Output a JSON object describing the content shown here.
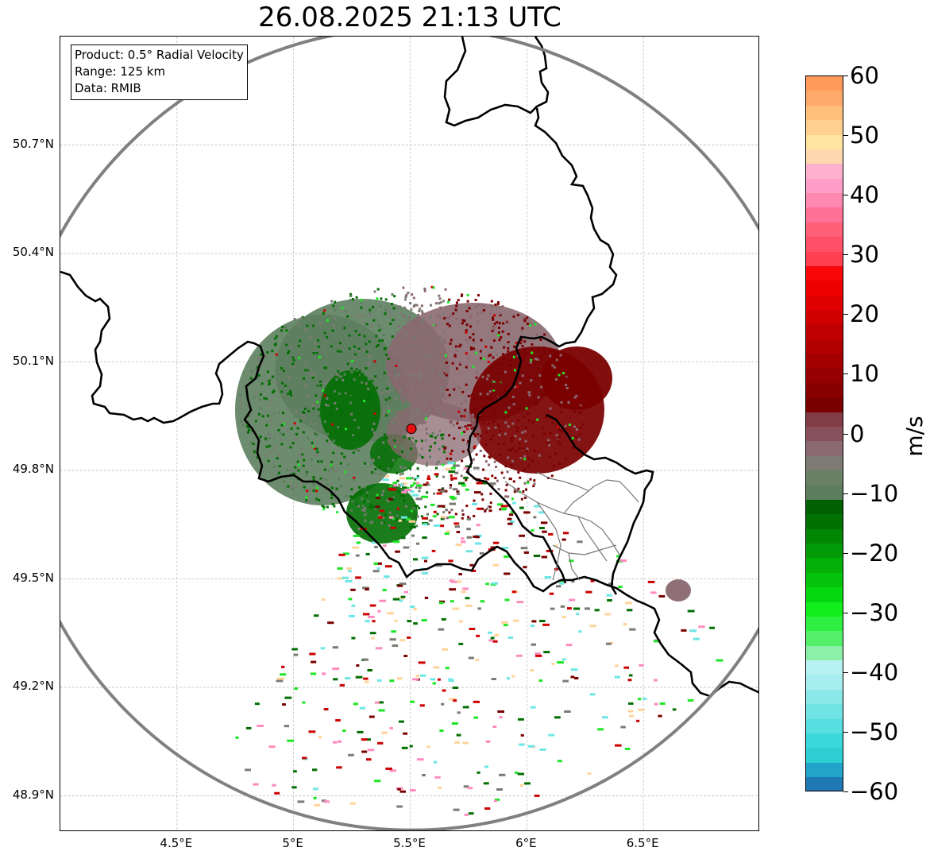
{
  "title": "26.08.2025 21:13 UTC",
  "info_box": {
    "product": "Product: 0.5° Radial Velocity",
    "range": "Range: 125 km",
    "data": "Data: RMIB"
  },
  "map": {
    "lon_range": [
      4.0,
      7.0
    ],
    "lat_range": [
      48.8,
      51.0
    ],
    "radar_site": {
      "lon": 5.505,
      "lat": 49.915
    },
    "lat_ticks": [
      {
        "value": 50.7,
        "label": "50.7°N"
      },
      {
        "value": 50.4,
        "label": "50.4°N"
      },
      {
        "value": 50.1,
        "label": "50.1°N"
      },
      {
        "value": 49.8,
        "label": "49.8°N"
      },
      {
        "value": 49.5,
        "label": "49.5°N"
      },
      {
        "value": 49.2,
        "label": "49.2°N"
      },
      {
        "value": 48.9,
        "label": "48.9°N"
      }
    ],
    "lon_ticks": [
      {
        "value": 4.5,
        "label": "4.5°E"
      },
      {
        "value": 5.0,
        "label": "5°E"
      },
      {
        "value": 5.5,
        "label": "5.5°E"
      },
      {
        "value": 6.0,
        "label": "6°E"
      },
      {
        "value": 6.5,
        "label": "6.5°E"
      }
    ],
    "range_circle_color": "#808080",
    "border_color": "#000000",
    "grid": true
  },
  "colorbar": {
    "unit": "m/s",
    "vmin": -60,
    "vmax": 60,
    "ticks": [
      {
        "value": 60,
        "label": "60"
      },
      {
        "value": 50,
        "label": "50"
      },
      {
        "value": 40,
        "label": "40"
      },
      {
        "value": 30,
        "label": "30"
      },
      {
        "value": 20,
        "label": "20"
      },
      {
        "value": 10,
        "label": "10"
      },
      {
        "value": 0,
        "label": "0"
      },
      {
        "value": -10,
        "label": "−10"
      },
      {
        "value": -20,
        "label": "−20"
      },
      {
        "value": -30,
        "label": "−30"
      },
      {
        "value": -40,
        "label": "−40"
      },
      {
        "value": -50,
        "label": "−50"
      },
      {
        "value": -60,
        "label": "−60"
      }
    ],
    "colors": [
      "#1f78b4",
      "#22a3c9",
      "#2ecfd3",
      "#3ad8da",
      "#55dfe0",
      "#70e4e5",
      "#8be9ea",
      "#a6eeef",
      "#b8f1f1",
      "#8cf0a8",
      "#54f06a",
      "#2ef040",
      "#11ee1c",
      "#05d80f",
      "#03c40b",
      "#02b008",
      "#029a06",
      "#028604",
      "#017202",
      "#016000",
      "#5c7e5c",
      "#6a8166",
      "#7e7b74",
      "#8a6a70",
      "#88505a",
      "#823c46",
      "#7a0000",
      "#880000",
      "#960000",
      "#a40000",
      "#b20000",
      "#c00000",
      "#d00000",
      "#e00000",
      "#ee0000",
      "#f80808",
      "#ff4050",
      "#ff5068",
      "#ff6078",
      "#ff7095",
      "#ff88b0",
      "#ff9ec8",
      "#ffb0cc",
      "#ffd8b0",
      "#ffe4a0",
      "#ffd090",
      "#ffc07a",
      "#ffaa6a",
      "#ff9a5a"
    ]
  },
  "velocity_colors": {
    "dark_green": "#026e02",
    "mid_green": "#5d7e5e",
    "neutral_grey": "#7c7a75",
    "mauve": "#8a6870",
    "dark_red": "#7a0000",
    "red": "#cc0000",
    "bright_green": "#1ee626",
    "cyan": "#6fe6e6",
    "pink": "#ff8cc0",
    "peach": "#ffd49a"
  }
}
